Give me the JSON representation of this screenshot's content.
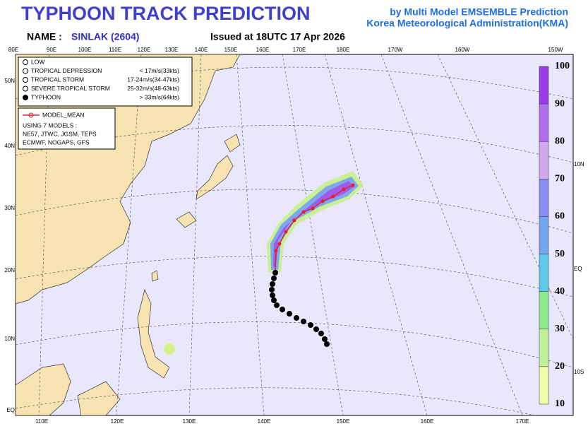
{
  "header": {
    "title": "TYPHOON TRACK PREDICTION",
    "source1": "by Multi Model EMSEMBLE Prediction",
    "source2": "Korea Meteorological Administration(KMA)",
    "name_label": "NAME :",
    "name": "SINLAK (2604)",
    "issued": "Issued at  18UTC 17 Apr 2026"
  },
  "map": {
    "top_labels": [
      "80E",
      "90E",
      "100E",
      "110E",
      "120E",
      "130E",
      "140E",
      "150E",
      "160E",
      "170E",
      "180E",
      "170W",
      "160W",
      "150W"
    ],
    "bottom_labels": [
      "110E",
      "120E",
      "130E",
      "140E",
      "150E",
      "160E",
      "170E"
    ],
    "left_labels": [
      "50N",
      "40N",
      "30N",
      "20N",
      "10N",
      "EQ"
    ],
    "right_labels": [
      "10N",
      "EQ",
      "10S"
    ]
  },
  "legend": {
    "items": [
      {
        "label": "LOW",
        "range": null
      },
      {
        "label": "TROPICAL DEPRESSION",
        "range": "< 17m/s(33kts)"
      },
      {
        "label": "TROPICAL STORM",
        "range": "17-24m/s(34-47kts)"
      },
      {
        "label": "SEVERE TROPICAL STORM",
        "range": "25-32m/s(48-63kts)"
      },
      {
        "label": "TYPHOON",
        "range": "> 33m/s(64kts)"
      }
    ],
    "mean": "MODEL_MEAN",
    "models_title": "USING 7 MODELS :",
    "models1": "NE57, JTWC, JGSM, TEPS",
    "models2": "ECMWF, NOGAPS, GFS"
  },
  "colorbar": {
    "labels": [
      100,
      90,
      80,
      70,
      60,
      50,
      40,
      30,
      20,
      10
    ],
    "colors": [
      "#9a3ae8",
      "#b070ee",
      "#d2a6f0",
      "#8a8ef0",
      "#74a6ee",
      "#5cc8ea",
      "#8eea8e",
      "#c0f09a",
      "#f0fcaa"
    ]
  }
}
